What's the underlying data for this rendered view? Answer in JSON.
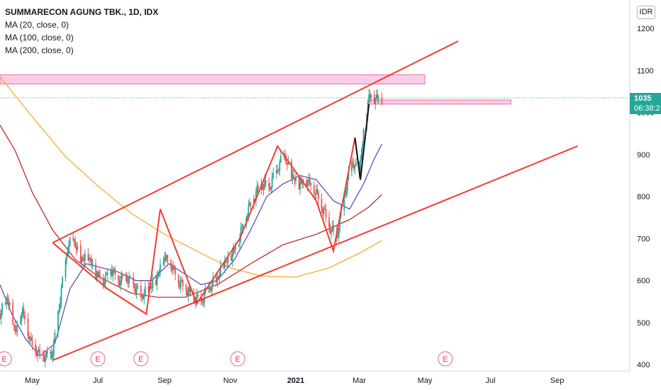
{
  "legend": {
    "title": "SUMMARECON AGUNG TBK., 1D, IDX",
    "ma20": "MA (20, close, 0)",
    "ma100": "MA (100, close, 0)",
    "ma200": "MA (200, close, 0)"
  },
  "currency": "IDR",
  "last_price": "1035",
  "countdown": "06:38:2",
  "colors": {
    "up": "#26a69a",
    "down": "#ef5350",
    "ma20": "#5b3fbf",
    "ma100": "#b71c1c",
    "ma200": "#f5a623",
    "trend": "#f23c31",
    "zone": "#f3bde0"
  },
  "chart_data": {
    "type": "candlestick",
    "x_axis": {
      "ticks": [
        "May",
        "Jul",
        "Sep",
        "Nov",
        "2021",
        "Mar",
        "May",
        "Jul",
        "Sep"
      ]
    },
    "y_axis": {
      "ticks": [
        400,
        500,
        600,
        700,
        800,
        900,
        1000,
        1100,
        1200
      ],
      "range": [
        390,
        1250
      ]
    },
    "last_price": 1035,
    "earnings_markers": [
      "E",
      "E",
      "E",
      "E",
      "E"
    ],
    "ma20": [
      [
        "2020-04-01",
        590
      ],
      [
        "2020-04-12",
        520
      ],
      [
        "2020-04-25",
        460
      ],
      [
        "2020-05-08",
        420
      ],
      [
        "2020-05-22",
        450
      ],
      [
        "2020-06-05",
        580
      ],
      [
        "2020-06-20",
        640
      ],
      [
        "2020-07-05",
        630
      ],
      [
        "2020-07-20",
        620
      ],
      [
        "2020-08-05",
        600
      ],
      [
        "2020-08-20",
        600
      ],
      [
        "2020-09-05",
        640
      ],
      [
        "2020-09-20",
        615
      ],
      [
        "2020-10-05",
        590
      ],
      [
        "2020-10-20",
        600
      ],
      [
        "2020-11-05",
        650
      ],
      [
        "2020-11-20",
        720
      ],
      [
        "2020-12-05",
        800
      ],
      [
        "2020-12-20",
        830
      ],
      [
        "2021-01-05",
        850
      ],
      [
        "2021-01-20",
        840
      ],
      [
        "2021-02-05",
        790
      ],
      [
        "2021-02-20",
        770
      ],
      [
        "2021-03-05",
        830
      ],
      [
        "2021-03-15",
        890
      ],
      [
        "2021-03-22",
        925
      ]
    ],
    "ma100": [
      [
        "2020-04-01",
        970
      ],
      [
        "2020-04-15",
        910
      ],
      [
        "2020-05-01",
        810
      ],
      [
        "2020-05-20",
        720
      ],
      [
        "2020-06-10",
        650
      ],
      [
        "2020-07-01",
        610
      ],
      [
        "2020-08-01",
        570
      ],
      [
        "2020-08-25",
        560
      ],
      [
        "2020-09-20",
        560
      ],
      [
        "2020-10-20",
        590
      ],
      [
        "2020-11-20",
        640
      ],
      [
        "2020-12-20",
        685
      ],
      [
        "2021-01-20",
        710
      ],
      [
        "2021-02-20",
        745
      ],
      [
        "2021-03-10",
        775
      ],
      [
        "2021-03-22",
        805
      ]
    ],
    "ma200": [
      [
        "2020-04-01",
        1085
      ],
      [
        "2020-05-01",
        990
      ],
      [
        "2020-06-01",
        895
      ],
      [
        "2020-07-01",
        825
      ],
      [
        "2020-08-01",
        760
      ],
      [
        "2020-09-01",
        710
      ],
      [
        "2020-10-01",
        670
      ],
      [
        "2020-11-01",
        630
      ],
      [
        "2020-12-01",
        610
      ],
      [
        "2021-01-01",
        608
      ],
      [
        "2021-02-01",
        630
      ],
      [
        "2021-03-01",
        665
      ],
      [
        "2021-03-22",
        695
      ]
    ],
    "channel": {
      "upper": [
        [
          "2020-05-20",
          690
        ],
        [
          "2021-06-01",
          1170
        ]
      ],
      "lower": [
        [
          "2020-05-20",
          410
        ],
        [
          "2021-09-20",
          920
        ]
      ]
    },
    "zigzag": [
      [
        "2020-05-20",
        690
      ],
      [
        "2020-07-10",
        580
      ],
      [
        "2020-08-15",
        520
      ],
      [
        "2020-08-28",
        770
      ],
      [
        "2020-10-01",
        545
      ],
      [
        "2020-11-10",
        700
      ],
      [
        "2020-12-15",
        920
      ],
      [
        "2021-01-20",
        790
      ],
      [
        "2021-02-05",
        670
      ],
      [
        "2021-02-25",
        940
      ],
      [
        "2021-03-02",
        840
      ],
      [
        "2021-03-10",
        1020
      ]
    ],
    "zones": [
      {
        "from": "2020-04-01",
        "to": "2021-05-01",
        "low": 1068,
        "high": 1090
      },
      {
        "from": "2021-03-10",
        "to": "2021-07-20",
        "low": 1020,
        "high": 1030
      }
    ],
    "close_path": [
      [
        "2020-04-01",
        520
      ],
      [
        "2020-04-08",
        560
      ],
      [
        "2020-04-15",
        480
      ],
      [
        "2020-04-22",
        530
      ],
      [
        "2020-04-29",
        460
      ],
      [
        "2020-05-06",
        430
      ],
      [
        "2020-05-13",
        420
      ],
      [
        "2020-05-20",
        430
      ],
      [
        "2020-05-27",
        560
      ],
      [
        "2020-06-03",
        680
      ],
      [
        "2020-06-08",
        700
      ],
      [
        "2020-06-15",
        650
      ],
      [
        "2020-06-22",
        660
      ],
      [
        "2020-06-29",
        620
      ],
      [
        "2020-07-06",
        600
      ],
      [
        "2020-07-13",
        630
      ],
      [
        "2020-07-20",
        600
      ],
      [
        "2020-07-27",
        610
      ],
      [
        "2020-08-03",
        590
      ],
      [
        "2020-08-10",
        560
      ],
      [
        "2020-08-17",
        580
      ],
      [
        "2020-08-24",
        600
      ],
      [
        "2020-08-31",
        660
      ],
      [
        "2020-09-07",
        640
      ],
      [
        "2020-09-14",
        600
      ],
      [
        "2020-09-21",
        580
      ],
      [
        "2020-09-28",
        560
      ],
      [
        "2020-10-05",
        550
      ],
      [
        "2020-10-12",
        580
      ],
      [
        "2020-10-19",
        600
      ],
      [
        "2020-10-26",
        640
      ],
      [
        "2020-11-02",
        660
      ],
      [
        "2020-11-09",
        700
      ],
      [
        "2020-11-16",
        760
      ],
      [
        "2020-11-23",
        800
      ],
      [
        "2020-11-30",
        830
      ],
      [
        "2020-12-07",
        820
      ],
      [
        "2020-12-14",
        860
      ],
      [
        "2020-12-21",
        900
      ],
      [
        "2020-12-28",
        850
      ],
      [
        "2021-01-04",
        830
      ],
      [
        "2021-01-11",
        840
      ],
      [
        "2021-01-18",
        820
      ],
      [
        "2021-01-25",
        780
      ],
      [
        "2021-02-01",
        730
      ],
      [
        "2021-02-08",
        700
      ],
      [
        "2021-02-15",
        800
      ],
      [
        "2021-02-22",
        880
      ],
      [
        "2021-03-01",
        860
      ],
      [
        "2021-03-05",
        950
      ],
      [
        "2021-03-10",
        1040
      ],
      [
        "2021-03-15",
        1035
      ],
      [
        "2021-03-22",
        1035
      ]
    ]
  }
}
